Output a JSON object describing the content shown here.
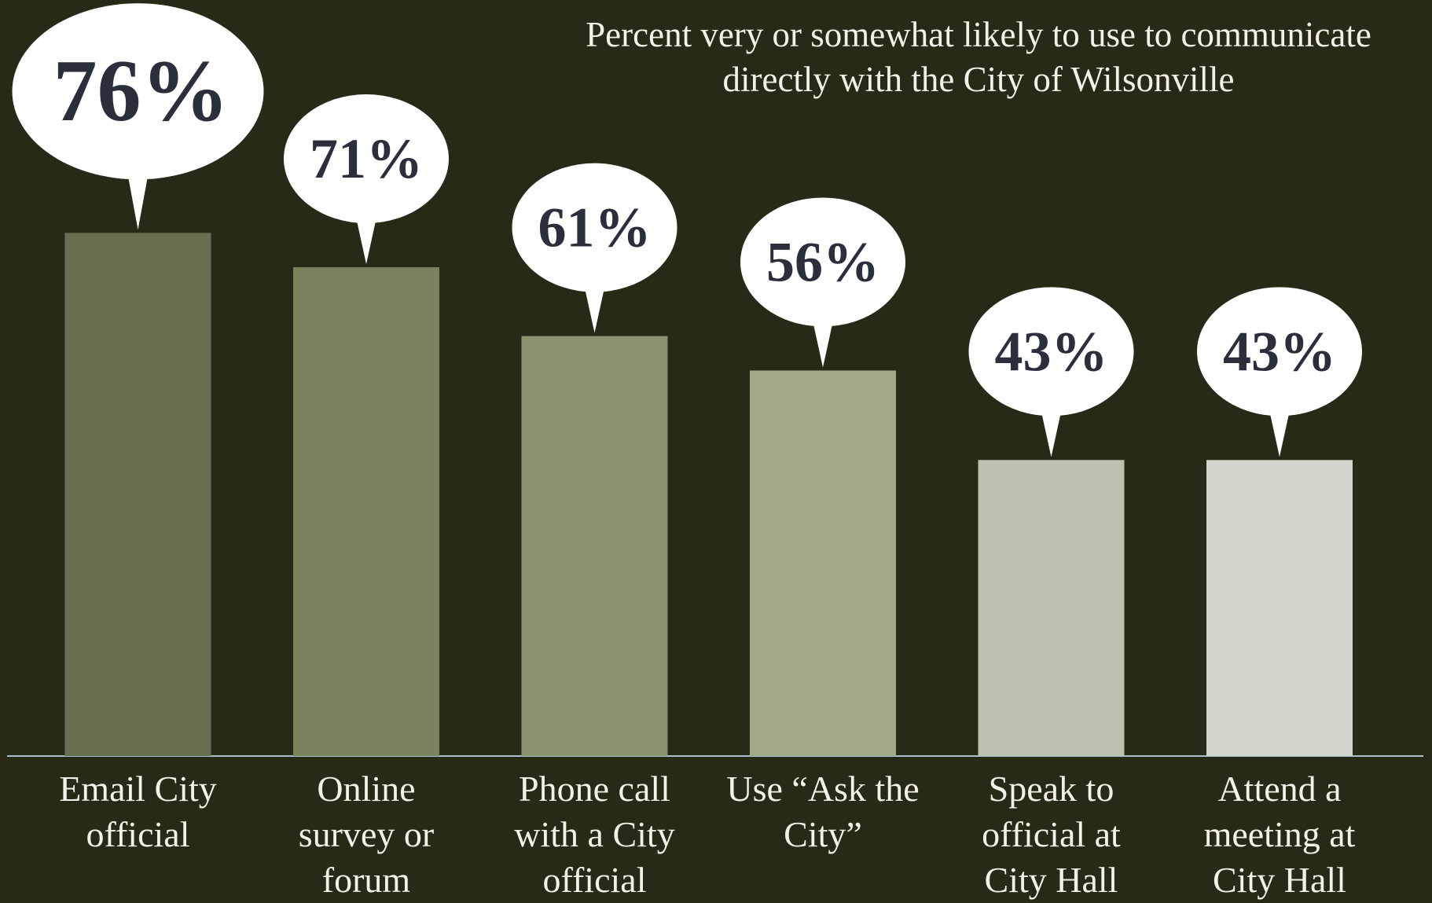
{
  "chart_data": {
    "type": "bar",
    "title": "Percent very or somewhat likely to use to communicate directly with the City of Wilsonville",
    "categories": [
      "Email City official",
      "Online survey or forum",
      "Phone call with a City official",
      "Use “Ask the City”",
      "Speak to official at City Hall",
      "Attend a meeting at City Hall"
    ],
    "values": [
      76,
      71,
      61,
      56,
      43,
      43
    ],
    "value_labels": [
      "76%",
      "71%",
      "61%",
      "56%",
      "43%",
      "43%"
    ],
    "colors": [
      "#686e50",
      "#7a825e",
      "#8b946e",
      "#a2a98b",
      "#bdc1af",
      "#d2d5cb"
    ]
  }
}
